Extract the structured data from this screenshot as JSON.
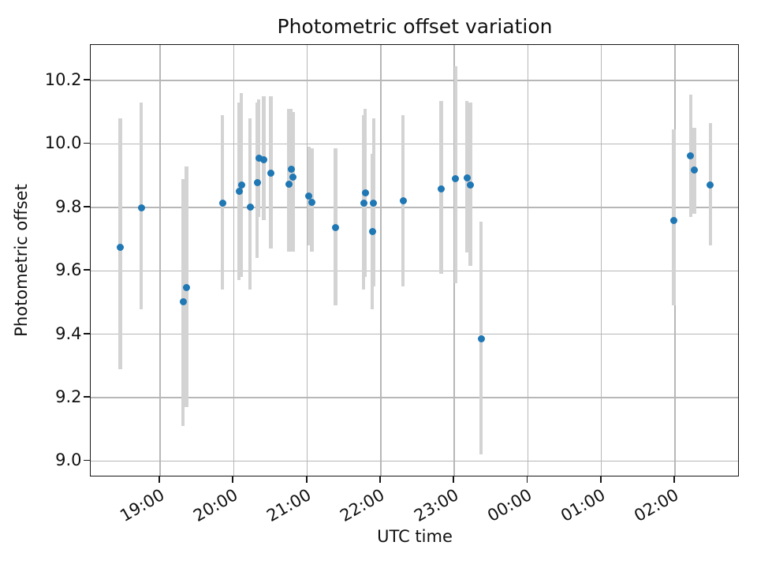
{
  "title": "Photometric offset variation",
  "chart_data": {
    "type": "scatter",
    "title": "Photometric offset variation",
    "xlabel": "UTC time",
    "ylabel": "Photometric offset",
    "grid": true,
    "legend": "none",
    "marker_color": "#1f77b4",
    "errorbar_color": "#d3d3d3",
    "grid_color": "#b7b7b7",
    "x_tick_labels": [
      "19:00",
      "20:00",
      "21:00",
      "22:00",
      "23:00",
      "00:00",
      "01:00",
      "02:00"
    ],
    "x_tick_hours_after_18utc": [
      1,
      2,
      3,
      4,
      5,
      6,
      7,
      8
    ],
    "xlim_hours_after_18utc": [
      0.05,
      8.88
    ],
    "y_ticks": [
      9.0,
      9.2,
      9.4,
      9.6,
      9.8,
      10.0,
      10.2
    ],
    "ylim": [
      8.949,
      10.312
    ],
    "points": [
      {
        "time": "18:28",
        "hours": 0.46,
        "value": 9.674,
        "err_lo": 9.29,
        "err_hi": 10.08
      },
      {
        "time": "18:45",
        "hours": 0.743,
        "value": 9.798,
        "err_lo": 9.48,
        "err_hi": 10.13
      },
      {
        "time": "19:19",
        "hours": 1.31,
        "value": 9.502,
        "err_lo": 9.11,
        "err_hi": 9.89
      },
      {
        "time": "19:21",
        "hours": 1.357,
        "value": 9.548,
        "err_lo": 9.17,
        "err_hi": 9.93
      },
      {
        "time": "19:51",
        "hours": 1.847,
        "value": 9.813,
        "err_lo": 9.54,
        "err_hi": 10.09
      },
      {
        "time": "20:04",
        "hours": 2.072,
        "value": 9.85,
        "err_lo": 9.57,
        "err_hi": 10.13
      },
      {
        "time": "20:06",
        "hours": 2.104,
        "value": 9.871,
        "err_lo": 9.58,
        "err_hi": 10.16
      },
      {
        "time": "20:13",
        "hours": 2.222,
        "value": 9.8,
        "err_lo": 9.54,
        "err_hi": 10.08
      },
      {
        "time": "20:19",
        "hours": 2.318,
        "value": 9.879,
        "err_lo": 9.64,
        "err_hi": 10.13
      },
      {
        "time": "20:20",
        "hours": 2.34,
        "value": 9.954,
        "err_lo": 9.77,
        "err_hi": 10.14
      },
      {
        "time": "20:25",
        "hours": 2.41,
        "value": 9.95,
        "err_lo": 9.76,
        "err_hi": 10.15
      },
      {
        "time": "20:30",
        "hours": 2.507,
        "value": 9.908,
        "err_lo": 9.67,
        "err_hi": 10.15
      },
      {
        "time": "20:45",
        "hours": 2.753,
        "value": 9.873,
        "err_lo": 9.66,
        "err_hi": 10.11
      },
      {
        "time": "20:47",
        "hours": 2.779,
        "value": 9.92,
        "err_lo": 9.68,
        "err_hi": 10.11
      },
      {
        "time": "20:48",
        "hours": 2.803,
        "value": 9.895,
        "err_lo": 9.66,
        "err_hi": 10.1
      },
      {
        "time": "21:02",
        "hours": 3.025,
        "value": 9.836,
        "err_lo": 9.68,
        "err_hi": 9.99
      },
      {
        "time": "21:04",
        "hours": 3.064,
        "value": 9.816,
        "err_lo": 9.66,
        "err_hi": 9.985
      },
      {
        "time": "21:23",
        "hours": 3.382,
        "value": 9.736,
        "err_lo": 9.49,
        "err_hi": 9.985
      },
      {
        "time": "21:46",
        "hours": 3.767,
        "value": 9.813,
        "err_lo": 9.54,
        "err_hi": 10.09
      },
      {
        "time": "21:47",
        "hours": 3.789,
        "value": 9.845,
        "err_lo": 9.58,
        "err_hi": 10.11
      },
      {
        "time": "21:53",
        "hours": 3.885,
        "value": 9.725,
        "err_lo": 9.48,
        "err_hi": 9.97
      },
      {
        "time": "21:54",
        "hours": 3.904,
        "value": 9.813,
        "err_lo": 9.55,
        "err_hi": 10.08
      },
      {
        "time": "22:18",
        "hours": 4.303,
        "value": 9.82,
        "err_lo": 9.55,
        "err_hi": 10.09
      },
      {
        "time": "22:49",
        "hours": 4.821,
        "value": 9.857,
        "err_lo": 9.59,
        "err_hi": 10.135
      },
      {
        "time": "23:01",
        "hours": 5.018,
        "value": 9.89,
        "err_lo": 9.56,
        "err_hi": 10.245
      },
      {
        "time": "23:10",
        "hours": 5.171,
        "value": 9.892,
        "err_lo": 9.657,
        "err_hi": 10.136
      },
      {
        "time": "23:13",
        "hours": 5.221,
        "value": 9.871,
        "err_lo": 9.616,
        "err_hi": 10.13
      },
      {
        "time": "23:22",
        "hours": 5.364,
        "value": 9.385,
        "err_lo": 9.02,
        "err_hi": 9.755
      },
      {
        "time": "01:59",
        "hours": 7.985,
        "value": 9.758,
        "err_lo": 9.49,
        "err_hi": 10.045
      },
      {
        "time": "02:13",
        "hours": 8.214,
        "value": 9.962,
        "err_lo": 9.77,
        "err_hi": 10.155
      },
      {
        "time": "02:16",
        "hours": 8.261,
        "value": 9.917,
        "err_lo": 9.78,
        "err_hi": 10.05
      },
      {
        "time": "02:29",
        "hours": 8.482,
        "value": 9.871,
        "err_lo": 9.68,
        "err_hi": 10.065
      }
    ]
  }
}
